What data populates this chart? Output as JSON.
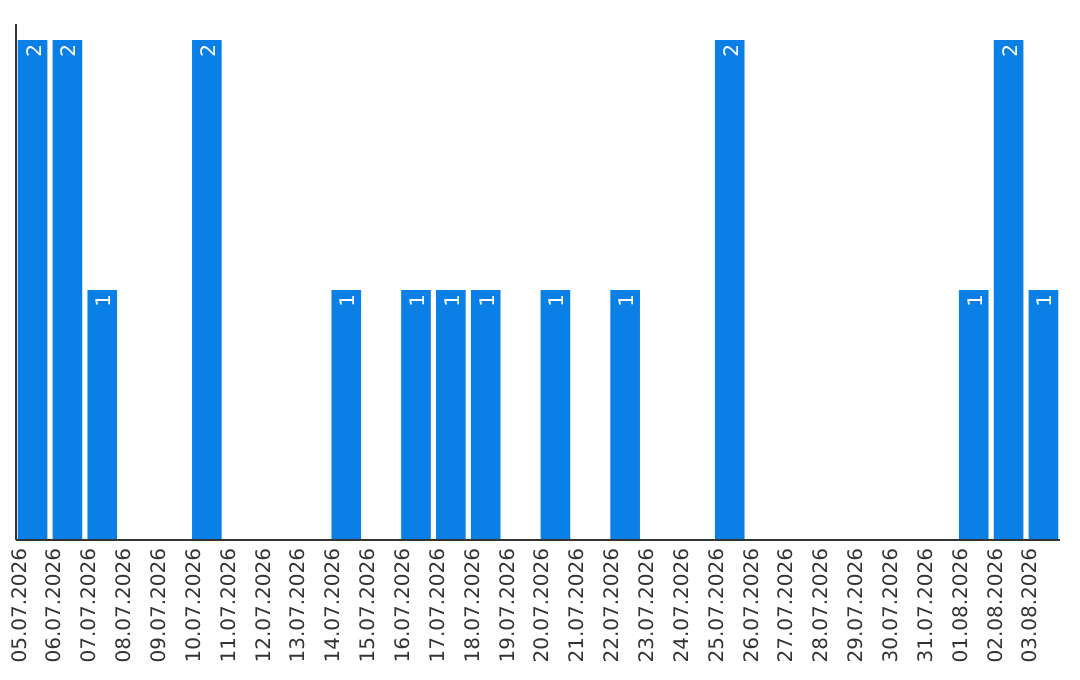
{
  "chart_data": {
    "type": "bar",
    "categories": [
      "05.07.2026",
      "06.07.2026",
      "07.07.2026",
      "08.07.2026",
      "09.07.2026",
      "10.07.2026",
      "11.07.2026",
      "12.07.2026",
      "13.07.2026",
      "14.07.2026",
      "15.07.2026",
      "16.07.2026",
      "17.07.2026",
      "18.07.2026",
      "19.07.2026",
      "20.07.2026",
      "21.07.2026",
      "22.07.2026",
      "23.07.2026",
      "24.07.2026",
      "25.07.2026",
      "26.07.2026",
      "27.07.2026",
      "28.07.2026",
      "29.07.2026",
      "30.07.2026",
      "31.07.2026",
      "01.08.2026",
      "02.08.2026",
      "03.08.2026"
    ],
    "values": [
      2,
      2,
      1,
      0,
      0,
      2,
      0,
      0,
      0,
      1,
      0,
      1,
      1,
      1,
      0,
      1,
      0,
      1,
      0,
      0,
      2,
      0,
      0,
      0,
      0,
      0,
      0,
      1,
      2,
      1
    ],
    "value_labels": [
      "2",
      "2",
      "1",
      null,
      null,
      "2",
      null,
      null,
      null,
      "1",
      null,
      "1",
      "1",
      "1",
      null,
      "1",
      null,
      "1",
      null,
      null,
      "2",
      null,
      null,
      null,
      null,
      null,
      null,
      "1",
      "2",
      "1"
    ],
    "color": "#0a7fe6",
    "tick_labels": "x"
  }
}
